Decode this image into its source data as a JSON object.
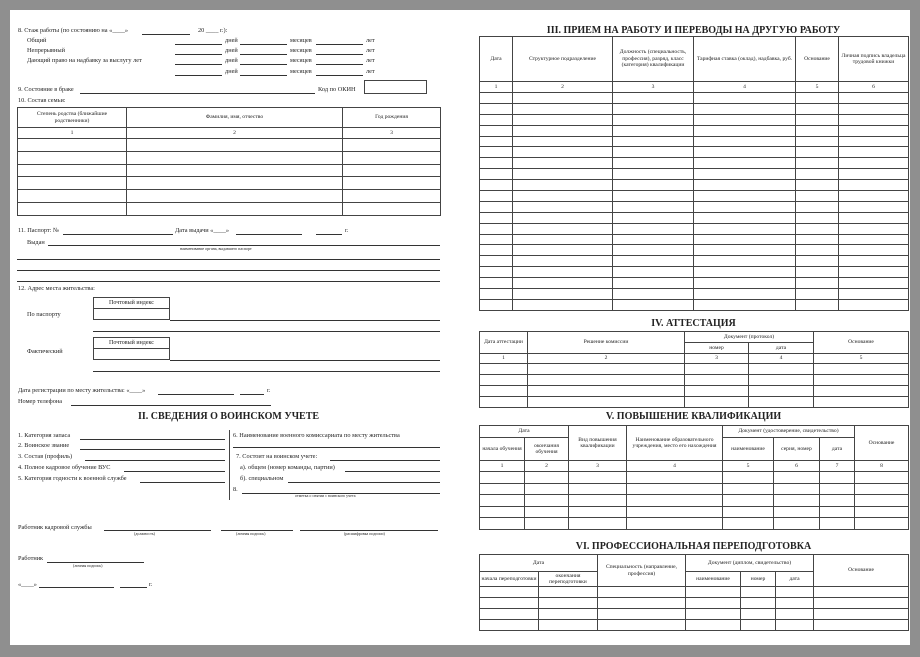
{
  "left": {
    "s8": {
      "label": "8. Стаж работы (по состоянию на «____»",
      "year": "20 ____ г.):",
      "rows": [
        "Общий",
        "Непрерывный",
        "Дающий право на надбавку за выслугу лет",
        ""
      ],
      "days": "дней",
      "months": "месяцев",
      "years": "лет"
    },
    "s9": {
      "label": "9. Состояние в браке",
      "okin": "Код по ОКИН"
    },
    "s10": {
      "label": "10. Состав семьи:",
      "headers": [
        "Степень родства (ближайшие родственники)",
        "Фамилия, имя, отчество",
        "Год рождения"
      ],
      "nums": [
        "1",
        "2",
        "3"
      ]
    },
    "s11": {
      "label": "11. Паспорт: №",
      "date": "Дата выдачи «____»",
      "g": "г.",
      "issued": "Выдан",
      "caption": "наименование органа, выдавшего паспорт"
    },
    "s12": {
      "label": "12. Адрес места жительства:",
      "passport": "По паспорту",
      "actual": "Фактический",
      "postal": "Почтовый индекс"
    },
    "reg": {
      "label": "Дата регистрации по месту жительства: «____»",
      "g": "г."
    },
    "phone": "Номер телефона",
    "military": {
      "title": "II. СВЕДЕНИЯ О ВОИНСКОМ УЧЕТЕ",
      "left": [
        "1. Категория запаса",
        "2. Воинское звание",
        "3. Состав (профиль)",
        "4. Полное кадровое обучение ВУС",
        "5. Категория годности к военной службе"
      ],
      "right": [
        "6. Наименование военного комиссариата по месту жительства",
        "7. Состоит на воинском учете:",
        "а). общем (номер команды, партии)",
        "б). специальном",
        "8."
      ],
      "caption": "отметка о снятии с воинского учета"
    },
    "hr": {
      "label": "Работник кадровой службы",
      "captions": [
        "(должность)",
        "(личная подпись)",
        "(расшифровка подписи)"
      ]
    },
    "worker": {
      "label": "Работник",
      "caption": "(личная подпись)"
    },
    "date": {
      "prefix": "«____»",
      "g": "г."
    }
  },
  "s3": {
    "title": "III. ПРИЕМ НА РАБОТУ И ПЕРЕВОДЫ НА ДРУГУЮ РАБОТУ",
    "headers": [
      "Дата",
      "Структурное подразделение",
      "Должность (специальность, профессия), разряд, класс (категория) квалификации",
      "Тарифная ставка (оклад), надбавка, руб.",
      "Основание",
      "Личная подпись владельца трудовой книжки"
    ],
    "nums": [
      "1",
      "2",
      "3",
      "4",
      "5",
      "6"
    ]
  },
  "s4": {
    "title": "IV. АТТЕСТАЦИЯ",
    "headers": [
      "Дата аттестации",
      "Решение комиссии",
      "Документ (протокол)",
      "номер",
      "дата",
      "Основание"
    ],
    "nums": [
      "1",
      "2",
      "3",
      "4",
      "5"
    ]
  },
  "s5": {
    "title": "V. ПОВЫШЕНИЕ КВАЛИФИКАЦИИ",
    "headers": [
      "Дата",
      "начала обучения",
      "окончания обучения",
      "Вид повышения квалификации",
      "Наименование образовательного учреждения, место его нахождения",
      "Документ (удостоверение, свидетельство)",
      "наименование",
      "серия, номер",
      "дата",
      "Основание"
    ],
    "nums": [
      "1",
      "2",
      "3",
      "4",
      "5",
      "6",
      "7",
      "8"
    ]
  },
  "s6": {
    "title": "VI. ПРОФЕССИОНАЛЬНАЯ ПЕРЕПОДГОТОВКА",
    "headers": [
      "Дата",
      "начала переподготовки",
      "окончания переподготовки",
      "Специальность (направление, профессия)",
      "Документ (диплом, свидетельство)",
      "наименование",
      "номер",
      "дата",
      "Основание"
    ]
  }
}
